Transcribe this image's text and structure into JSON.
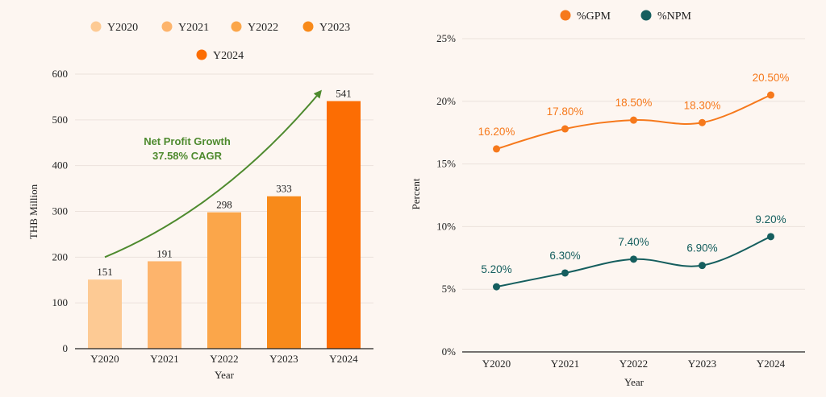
{
  "chart_data": [
    {
      "type": "bar",
      "categories": [
        "Y2020",
        "Y2021",
        "Y2022",
        "Y2023",
        "Y2024"
      ],
      "values": [
        151,
        191,
        298,
        333,
        541
      ],
      "colors": [
        "#fdca94",
        "#fdb46c",
        "#fba64a",
        "#f88a1a",
        "#fc6d03"
      ],
      "xlabel": "Year",
      "ylabel": "THB Million",
      "ylim": [
        0,
        600
      ],
      "yticks": [
        0,
        100,
        200,
        300,
        400,
        500,
        600
      ],
      "grid": true,
      "legend": "top",
      "annotation": {
        "line1": "Net Profit Growth",
        "line2": "37.58% CAGR",
        "color": "#4e8a2e",
        "arrow_from": [
          0,
          200
        ],
        "arrow_to": [
          3.6,
          560
        ]
      }
    },
    {
      "type": "line",
      "categories": [
        "Y2020",
        "Y2021",
        "Y2022",
        "Y2023",
        "Y2024"
      ],
      "series": [
        {
          "name": "%GPM",
          "values": [
            16.2,
            17.8,
            18.5,
            18.3,
            20.5
          ],
          "labels": [
            "16.20%",
            "17.80%",
            "18.50%",
            "18.30%",
            "20.50%"
          ],
          "color": "#f6791c"
        },
        {
          "name": "%NPM",
          "values": [
            5.2,
            6.3,
            7.4,
            6.9,
            9.2
          ],
          "labels": [
            "5.20%",
            "6.30%",
            "7.40%",
            "6.90%",
            "9.20%"
          ],
          "color": "#155e5e"
        }
      ],
      "xlabel": "Year",
      "ylabel": "Percent",
      "ylim": [
        0,
        25
      ],
      "yticks": [
        "0%",
        "5%",
        "10%",
        "15%",
        "20%",
        "25%"
      ],
      "grid": true,
      "legend": "top"
    }
  ]
}
